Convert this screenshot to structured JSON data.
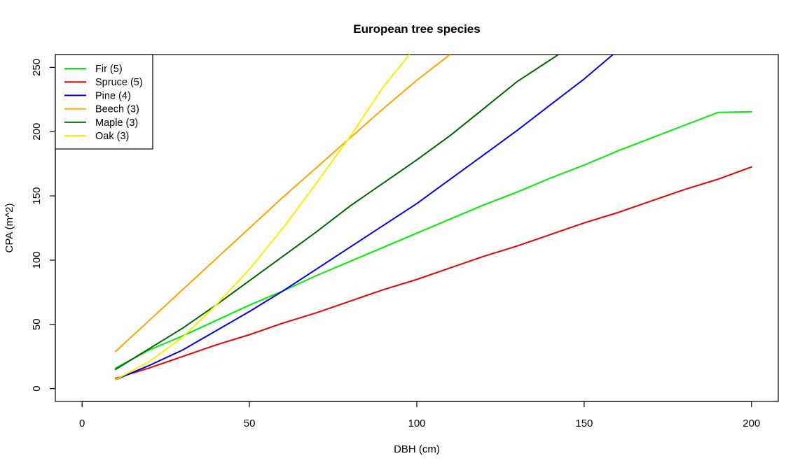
{
  "chart_data": {
    "type": "line",
    "title": "European tree species",
    "xlabel": "DBH (cm)",
    "ylabel": "CPA (m^2)",
    "xlim": [
      -8,
      208
    ],
    "ylim": [
      -10,
      260
    ],
    "x_ticks": [
      0,
      50,
      100,
      150,
      200
    ],
    "y_ticks": [
      0,
      50,
      100,
      150,
      200,
      250
    ],
    "grid": false,
    "legend_position": "top-left",
    "series": [
      {
        "name": "Fir (5)",
        "color": "#00ee00",
        "x": [
          10,
          20,
          30,
          40,
          50,
          60,
          70,
          80,
          90,
          100,
          110,
          120,
          130,
          140,
          150,
          160,
          170,
          180,
          190,
          200
        ],
        "y": [
          16,
          30,
          41,
          53,
          65,
          76,
          88,
          99,
          110,
          121,
          132,
          143,
          153,
          164,
          174,
          185,
          195,
          205,
          215,
          215.5
        ]
      },
      {
        "name": "Spruce (5)",
        "color": "#ee0000",
        "x": [
          10,
          20,
          30,
          40,
          50,
          60,
          70,
          80,
          90,
          100,
          110,
          120,
          130,
          140,
          150,
          160,
          170,
          180,
          190,
          200
        ],
        "y": [
          8,
          16,
          25,
          34,
          42,
          51,
          59,
          68,
          77,
          85,
          94,
          103,
          111,
          120,
          129,
          137,
          146,
          155,
          163,
          172.5
        ]
      },
      {
        "name": "Pine (4)",
        "color": "#0000ee",
        "x": [
          10,
          20,
          30,
          40,
          50,
          60,
          70,
          80,
          90,
          100,
          110,
          120,
          130,
          140,
          150,
          158.6
        ],
        "y": [
          7,
          18,
          30,
          45,
          60,
          76,
          93,
          110,
          127,
          144,
          163,
          182,
          201,
          221,
          241,
          260
        ]
      },
      {
        "name": "Beech (3)",
        "color": "#ffa500",
        "x": [
          10,
          20,
          30,
          40,
          50,
          60,
          70,
          80,
          90,
          100,
          109.9
        ],
        "y": [
          29,
          53,
          77,
          101,
          125,
          149,
          172,
          195,
          218,
          240,
          260
        ]
      },
      {
        "name": "Maple (3)",
        "color": "#006400",
        "x": [
          10,
          20,
          30,
          40,
          50,
          60,
          70,
          80,
          90,
          100,
          110,
          120,
          130,
          142.3
        ],
        "y": [
          15,
          31,
          47,
          65,
          84,
          103,
          122,
          142,
          160,
          178,
          197,
          218,
          239,
          260
        ]
      },
      {
        "name": "Oak (3)",
        "color": "#ffee00",
        "x": [
          10,
          20,
          30,
          40,
          50,
          60,
          70,
          80,
          90,
          97.8
        ],
        "y": [
          7,
          21,
          40,
          65,
          93,
          125,
          160,
          196,
          235,
          260
        ]
      }
    ]
  }
}
